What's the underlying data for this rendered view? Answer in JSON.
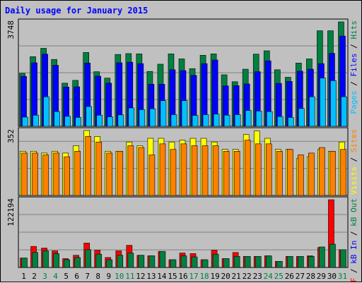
{
  "chart_data": {
    "type": "bar",
    "title": "Daily usage for January 2015",
    "categories": [
      "1",
      "2",
      "3",
      "4",
      "5",
      "6",
      "7",
      "8",
      "9",
      "10",
      "11",
      "12",
      "13",
      "14",
      "15",
      "16",
      "17",
      "18",
      "19",
      "20",
      "21",
      "22",
      "23",
      "24",
      "25",
      "26",
      "27",
      "28",
      "29",
      "30",
      "31"
    ],
    "weekend_days": [
      "3",
      "4",
      "10",
      "11",
      "17",
      "18",
      "24",
      "25",
      "31"
    ],
    "panels": [
      {
        "id": "top",
        "max_label": "3748",
        "ymax": 3748,
        "legend": [
          {
            "text": "Pages",
            "color": "#00c0ff"
          },
          {
            "text": " / ",
            "color": "#000000"
          },
          {
            "text": "Files",
            "color": "#0000ff"
          },
          {
            "text": " / ",
            "color": "#000000"
          },
          {
            "text": "Hits",
            "color": "#008040"
          }
        ],
        "series": [
          {
            "name": "Hits",
            "color": "#008040",
            "values": [
              1900,
              2500,
              2800,
              2400,
              1550,
              1650,
              2650,
              1960,
              1730,
              2580,
              2610,
              2600,
              1970,
              2230,
              2600,
              2420,
              2070,
              2550,
              2600,
              1850,
              1600,
              2050,
              2590,
              2710,
              2030,
              1760,
              2270,
              2420,
              3430,
              3430,
              3748
            ]
          },
          {
            "name": "Files",
            "color": "#0000ff",
            "values": [
              1790,
              2280,
              2590,
              2190,
              1410,
              1420,
              2270,
              1800,
              1550,
              2280,
              2300,
              2250,
              1510,
              1510,
              2030,
              2000,
              1830,
              2250,
              2380,
              1450,
              1460,
              1520,
              1960,
              2350,
              1540,
              1610,
              1980,
              2050,
              2250,
              2620,
              3240
            ]
          },
          {
            "name": "Pages",
            "color": "#00c0ff",
            "values": [
              330,
              400,
              1060,
              530,
              360,
              320,
              710,
              400,
              340,
              410,
              660,
              600,
              630,
              920,
              420,
              920,
              390,
              420,
              440,
              400,
              420,
              570,
              550,
              530,
              350,
              320,
              640,
              1060,
              1730,
              1640,
              1060
            ]
          }
        ]
      },
      {
        "id": "middle",
        "max_label": "352",
        "ymax": 352,
        "legend": [
          {
            "text": "Visits",
            "color": "#ffff00"
          },
          {
            "text": " / ",
            "color": "#000000"
          },
          {
            "text": "Sites",
            "color": "#ff8000"
          }
        ],
        "series": [
          {
            "name": "Visits",
            "color": "#ffff00",
            "values": [
              240,
              240,
              230,
              240,
              230,
              270,
              352,
              320,
              240,
              240,
              290,
              270,
              310,
              310,
              290,
              300,
              310,
              310,
              290,
              250,
              250,
              330,
              350,
              310,
              250,
              250,
              200,
              210,
              250,
              240,
              290
            ]
          },
          {
            "name": "Sites",
            "color": "#ff8000",
            "values": [
              230,
              230,
              220,
              230,
              210,
              240,
              320,
              290,
              230,
              240,
              270,
              260,
              220,
              280,
              250,
              280,
              270,
              270,
              270,
              240,
              240,
              300,
              280,
              280,
              240,
              250,
              220,
              230,
              260,
              240,
              250
            ]
          }
        ]
      },
      {
        "id": "bottom",
        "max_label": "122194",
        "ymax": 122194,
        "legend": [
          {
            "text": "kB F",
            "color": "#ff0000"
          },
          {
            "text": " / ",
            "color": "#000000"
          },
          {
            "text": "kB In",
            "color": "#0000ff"
          },
          {
            "text": " / ",
            "color": "#000000"
          },
          {
            "text": "kB Out",
            "color": "#008040"
          }
        ],
        "series": [
          {
            "name": "kB F",
            "color": "#ff0000",
            "values": [
              17000,
              38000,
              35000,
              30000,
              16000,
              22000,
              44000,
              31000,
              18000,
              30000,
              40000,
              22000,
              21000,
              29000,
              14000,
              26000,
              25000,
              14000,
              31000,
              16000,
              27000,
              20000,
              20000,
              21000,
              11000,
              20000,
              20000,
              21000,
              36000,
              122194,
              32000
            ]
          },
          {
            "name": "kB Out",
            "color": "#008040",
            "values": [
              17000,
              27000,
              30000,
              25000,
              14000,
              18000,
              32000,
              24000,
              14000,
              22000,
              26000,
              22000,
              21000,
              29000,
              14000,
              21000,
              19000,
              14000,
              24000,
              16000,
              20000,
              20000,
              20000,
              21000,
              11000,
              20000,
              20000,
              20000,
              37000,
              42000,
              32000
            ]
          }
        ]
      }
    ]
  }
}
